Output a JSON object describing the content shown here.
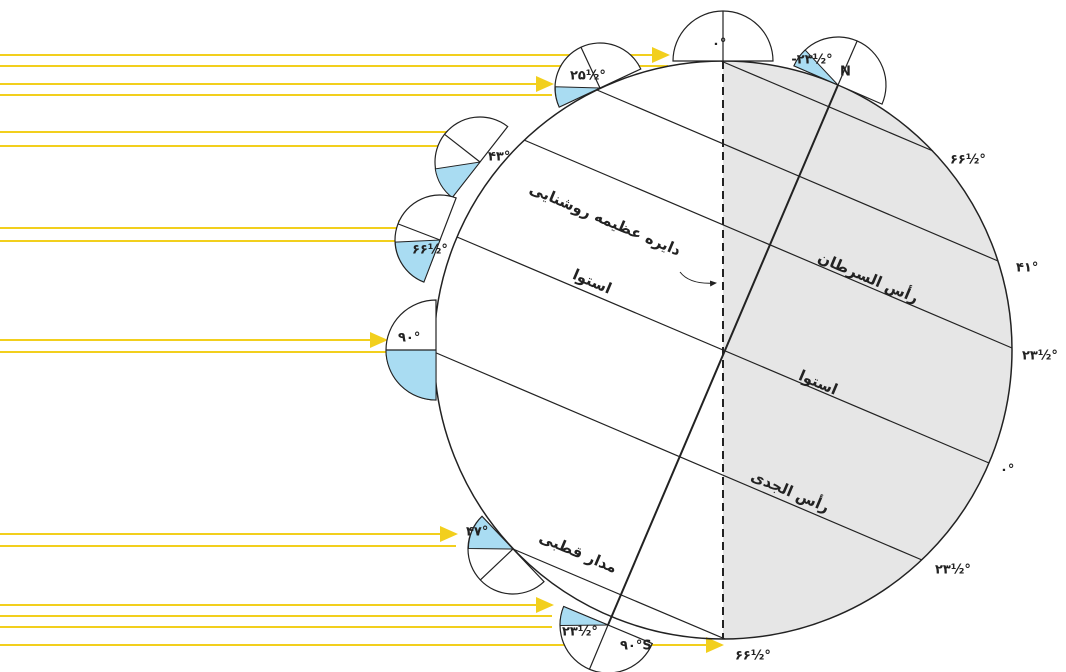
{
  "instrument_labels": [
    "۰°",
    "N",
    "-۲۳½°",
    "۲۵½°",
    "۴۳°",
    "۶۶½°",
    "۹۰°",
    "۴۷°",
    "۲۳½°",
    "۹۰°S"
  ],
  "latitude_labels": [
    "۶۶½°",
    "۴۱°",
    "۲۳½°",
    "۰°",
    "۲۳½°",
    "۶۶½°"
  ],
  "region_labels": [
    "دایره عظیمه روشنایی",
    "استوا",
    "رأس السرطان",
    "استوا",
    "رأس الجدی",
    "مدار قطبی"
  ]
}
